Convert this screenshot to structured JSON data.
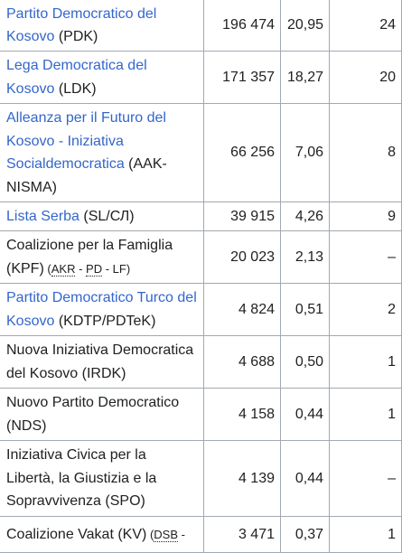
{
  "rows": [
    {
      "name": "Partito Democratico del Kosovo",
      "link": true,
      "after": " (PDK)",
      "votes": "196 474",
      "pct": "20,95",
      "seats": "24"
    },
    {
      "name": "Lega Democratica del Kosovo",
      "link": true,
      "after": " (LDK)",
      "votes": "171 357",
      "pct": "18,27",
      "seats": "20"
    },
    {
      "name": "Alleanza per il Futuro del Kosovo - Iniziativa Socialdemocratica",
      "link": true,
      "after": " (AAK-NISMA)",
      "votes": "66 256",
      "pct": "7,06",
      "seats": "8"
    },
    {
      "name": "Lista Serba",
      "link": true,
      "after": " (SL/СЛ)",
      "votes": "39 915",
      "pct": "4,26",
      "seats": "9"
    },
    {
      "name": "Coalizione per la Famiglia (KPF)",
      "link": false,
      "after": "",
      "sub_before": " (",
      "sub_abbr": [
        "AKR",
        "PD"
      ],
      "sub_tail": "LF)",
      "votes": "20 023",
      "pct": "2,13",
      "seats": "–"
    },
    {
      "name": "Partito Democratico Turco del Kosovo",
      "link": true,
      "after": " (KDTP/PDTeK)",
      "votes": "4 824",
      "pct": "0,51",
      "seats": "2"
    },
    {
      "name": "Nuova Iniziativa Democratica del Kosovo (IRDK)",
      "link": false,
      "after": "",
      "votes": "4 688",
      "pct": "0,50",
      "seats": "1"
    },
    {
      "name": "Nuovo Partito Democratico (NDS)",
      "link": false,
      "after": "",
      "votes": "4 158",
      "pct": "0,44",
      "seats": "1"
    },
    {
      "name": "Iniziativa Civica per la Libertà, la Giustizia e la Sopravvivenza (SPO)",
      "link": false,
      "after": "",
      "votes": "4 139",
      "pct": "0,44",
      "seats": "–"
    },
    {
      "name": "Coalizione Vakat (KV)",
      "link": false,
      "after": "",
      "sub_before": " (",
      "sub_abbr": [
        "DSB"
      ],
      "sub_tail": "",
      "votes": "3 471",
      "pct": "0,37",
      "seats": "1"
    }
  ]
}
